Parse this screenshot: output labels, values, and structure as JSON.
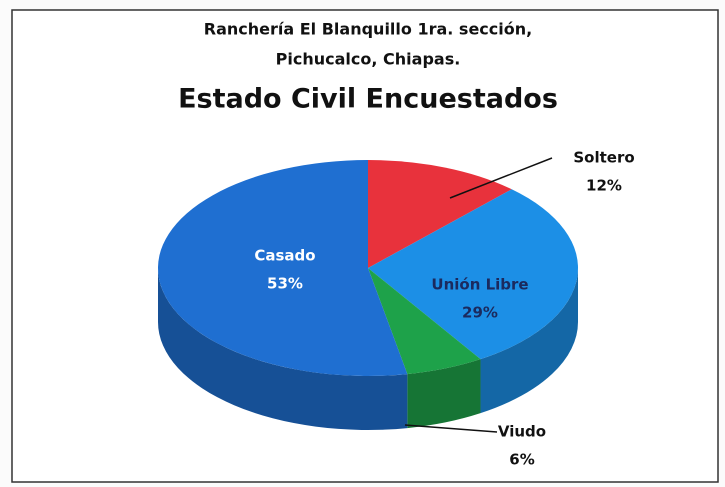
{
  "chart_data": {
    "type": "pie",
    "subtitle_lines": [
      "Ranchería El Blanquillo 1ra. sección,",
      "Pichucalco, Chiapas."
    ],
    "title": "Estado Civil Encuestados",
    "categories": [
      "Soltero",
      "Unión Libre",
      "Viudo",
      "Casado"
    ],
    "values": [
      12,
      29,
      6,
      53
    ],
    "value_labels": [
      "12%",
      "29%",
      "6%",
      "53%"
    ],
    "colors": [
      "#e8323c",
      "#1c8fe6",
      "#1ea24a",
      "#1f6fd1"
    ]
  }
}
